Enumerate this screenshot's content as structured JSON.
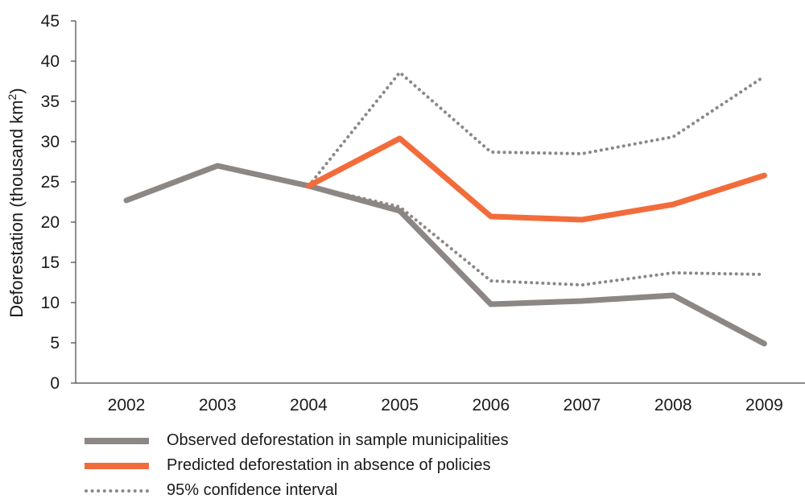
{
  "chart_data": {
    "type": "line",
    "title": "",
    "xlabel": "",
    "ylabel": "Deforestation (thousand km",
    "ylabel_superscript": "2",
    "ylabel_suffix": ")",
    "x": [
      "2002",
      "2003",
      "2004",
      "2005",
      "2006",
      "2007",
      "2008",
      "2009"
    ],
    "ylim": [
      0,
      45
    ],
    "yticks": [
      "0",
      "5",
      "10",
      "15",
      "20",
      "25",
      "30",
      "35",
      "40",
      "45"
    ],
    "series": [
      {
        "name": "Observed deforestation in sample municipalities",
        "key": "observed",
        "style": "solid",
        "color": "#8c8784",
        "values": [
          22.7,
          27.0,
          24.5,
          21.4,
          9.8,
          10.2,
          10.9,
          4.9
        ]
      },
      {
        "name": "Predicted deforestation in absence of policies",
        "key": "predicted",
        "style": "solid",
        "color": "#f26c3b",
        "values": [
          null,
          null,
          24.5,
          30.4,
          20.7,
          20.3,
          22.2,
          25.8
        ]
      },
      {
        "name": "95% confidence interval",
        "key": "ci_upper",
        "style": "dotted",
        "color": "#8c8784",
        "values": [
          null,
          null,
          24.5,
          38.6,
          28.7,
          28.5,
          30.6,
          38.1
        ]
      },
      {
        "name": "95% confidence interval",
        "key": "ci_lower",
        "style": "dotted",
        "color": "#8c8784",
        "values": [
          null,
          null,
          24.5,
          21.9,
          12.7,
          12.2,
          13.7,
          13.5
        ]
      }
    ],
    "legend": {
      "placement": "bottom-left",
      "items": [
        {
          "label": "Observed deforestation in sample municipalities",
          "style": "solid",
          "color": "#8c8784"
        },
        {
          "label": "Predicted deforestation in absence of policies",
          "style": "solid",
          "color": "#f26c3b"
        },
        {
          "label": "95% confidence interval",
          "style": "dotted",
          "color": "#8c8784"
        }
      ]
    },
    "grid": false
  }
}
